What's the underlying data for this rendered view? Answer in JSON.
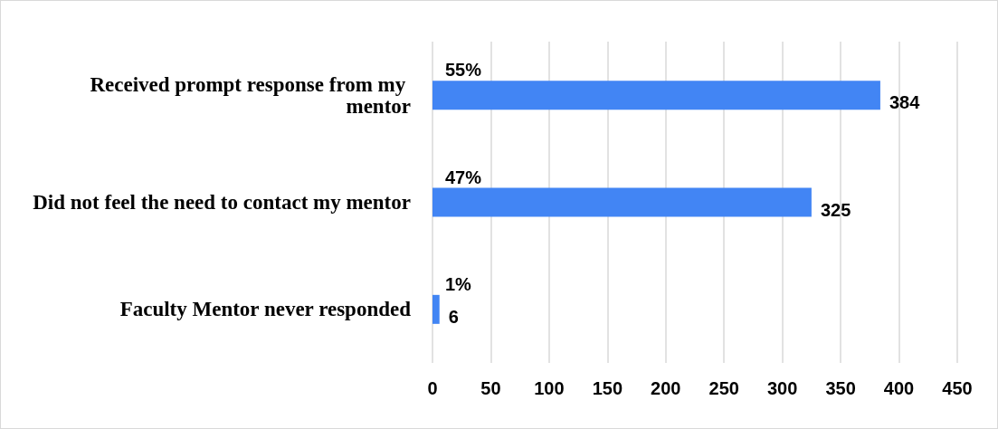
{
  "chart_data": {
    "type": "bar",
    "orientation": "horizontal",
    "categories": [
      "Received prompt response from my mentor",
      "Did not feel the need to contact my mentor",
      "Faculty Mentor never responded"
    ],
    "values": [
      384,
      325,
      6
    ],
    "color": "#4285f4",
    "xlim": [
      0,
      450
    ],
    "xticks": [
      0,
      50,
      100,
      150,
      200,
      250,
      300,
      350,
      400,
      450
    ],
    "grid": "x",
    "data_labels": true,
    "annotations": [
      "55%",
      "47%",
      "1%"
    ]
  }
}
